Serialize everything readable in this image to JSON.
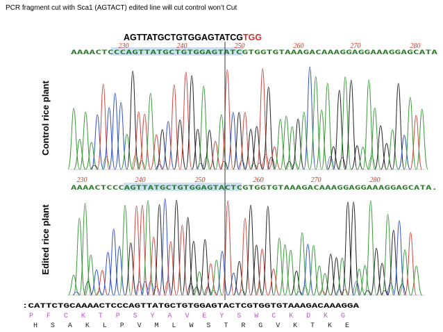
{
  "header": {
    "title": "PCR fragment  cut with Sca1 (AGTACT) edited line will cut control won’t Cut"
  },
  "guide": {
    "sequence": "AGTTATGCTGTGGAGTATCG",
    "pam": "TGG"
  },
  "control": {
    "label": "Control rice plant",
    "sequence": "AAAACTCCCAGTTATGCTGTGGAGTATCGTGGTGTAAAGACAAAGGAGGAAAGGAGCATA",
    "positions": [
      "230",
      "240",
      "250",
      "260",
      "270",
      "280"
    ]
  },
  "edited": {
    "label": "Edited rice plant",
    "sequence": "AAAACTCCCAGTTATGCTGTGGAGTACTCGTGGTGTAAAGACAAAGGAGGAAAGGAGCATA.",
    "positions": [
      "230",
      "240",
      "250",
      "260",
      "270",
      "280"
    ]
  },
  "translation": {
    "sequence": ":CATTCTGCAAAACTCCCAGTTATGCTGTGGAGTACTCGTGGTGTAAAGACAAAGGA",
    "frame1": "P F C K T P S Y A V E Y S W C K D K G",
    "frame2": "H S A K L P V M L W S T R G V K T K E"
  }
}
